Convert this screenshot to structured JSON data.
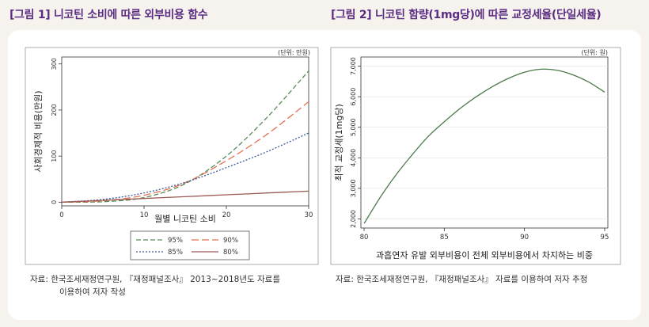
{
  "titles": {
    "left": "[그림 1] 니코틴 소비에 따른 외부비용 함수",
    "right": "[그림 2] 니코틴 함량(1mg당)에 따른 교정세율(단일세율)"
  },
  "sources": {
    "left_line1": "자료: 한국조세재정연구원, 『재정패널조사』 2013~2018년도 자료를",
    "left_line2": "이용하여 저자 작성",
    "right": "자료: 한국조세재정연구원, 『재정패널조사』 자료를 이용하여 저자 추정"
  },
  "chart_data": [
    {
      "type": "line",
      "unit_note": "(단위: 만원)",
      "xlabel": "월별 니코틴 소비",
      "ylabel": "사회경제적 비용(만원)",
      "xlim": [
        0,
        30
      ],
      "ylim": [
        -8,
        315
      ],
      "xticks": [
        0,
        10,
        20,
        30
      ],
      "yticks": [
        0,
        100,
        200,
        300
      ],
      "x": [
        0,
        5,
        10,
        15,
        20,
        25,
        30
      ],
      "series": [
        {
          "name": "95%",
          "color": "#5a8a5a",
          "dash": "6,3",
          "values": [
            0,
            1,
            10,
            40,
            100,
            185,
            285
          ]
        },
        {
          "name": "90%",
          "color": "#e07050",
          "dash": "9,4",
          "values": [
            0,
            3,
            15,
            42,
            90,
            148,
            218
          ]
        },
        {
          "name": "85%",
          "color": "#3a5a9a",
          "dash": "2,2",
          "values": [
            0,
            6,
            20,
            43,
            75,
            110,
            150
          ]
        },
        {
          "name": "80%",
          "color": "#9a5a55",
          "dash": "",
          "values": [
            0,
            4,
            8,
            12,
            16,
            20,
            24
          ]
        }
      ]
    },
    {
      "type": "line",
      "unit_note": "(단위: 원)",
      "xlabel": "과흡연자 유발 외부비용이 전체 외부비용에서 차지하는 비중",
      "ylabel": "최적 교정세(1mg당)",
      "xlim": [
        79.8,
        95.2
      ],
      "ylim": [
        1700,
        7300
      ],
      "xticks": [
        80,
        85,
        90,
        95
      ],
      "yticks": [
        2000,
        3000,
        4000,
        5000,
        6000,
        7000
      ],
      "ytick_labels": [
        "2,000",
        "3,000",
        "4,000",
        "5,000",
        "6,000",
        "7,000"
      ],
      "x": [
        80,
        81,
        82,
        83,
        84,
        85,
        86,
        87,
        88,
        89,
        90,
        91,
        92,
        93,
        94,
        95
      ],
      "series": [
        {
          "color": "#4a7a4a",
          "dash": "",
          "values": [
            1850,
            2700,
            3450,
            4100,
            4700,
            5180,
            5620,
            6000,
            6330,
            6600,
            6800,
            6900,
            6870,
            6720,
            6480,
            6150
          ]
        }
      ]
    }
  ]
}
